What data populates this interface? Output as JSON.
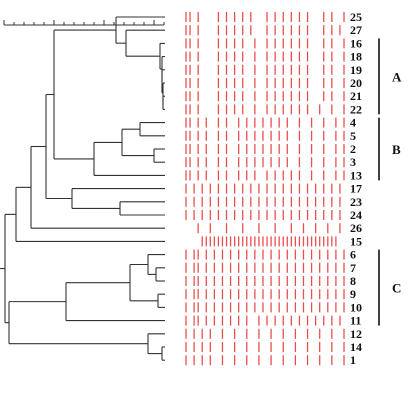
{
  "leaves": [
    {
      "label": "25",
      "bands": [
        0,
        1,
        3,
        8,
        10,
        12,
        14,
        16,
        20,
        22,
        24,
        26,
        28,
        30,
        34,
        36,
        39
      ]
    },
    {
      "label": "27",
      "bands": [
        0,
        1,
        3,
        8,
        10,
        12,
        14,
        16,
        20,
        22,
        24,
        26,
        28,
        30,
        34,
        36,
        38
      ]
    },
    {
      "label": "16",
      "bands": [
        0,
        1,
        3,
        8,
        10,
        12,
        14,
        17,
        20,
        22,
        24,
        26,
        28,
        30,
        34,
        36,
        39
      ]
    },
    {
      "label": "18",
      "bands": [
        0,
        1,
        3,
        8,
        10,
        12,
        14,
        17,
        20,
        22,
        24,
        26,
        28,
        30,
        34,
        36,
        39
      ]
    },
    {
      "label": "19",
      "bands": [
        0,
        1,
        3,
        8,
        10,
        12,
        14,
        17,
        20,
        22,
        24,
        26,
        28,
        30,
        34,
        36,
        39
      ]
    },
    {
      "label": "20",
      "bands": [
        0,
        1,
        3,
        8,
        10,
        12,
        14,
        17,
        20,
        22,
        24,
        26,
        28,
        30,
        34,
        36,
        39
      ]
    },
    {
      "label": "21",
      "bands": [
        0,
        1,
        3,
        8,
        10,
        12,
        14,
        17,
        20,
        22,
        24,
        26,
        28,
        30,
        34,
        36,
        39
      ]
    },
    {
      "label": "22",
      "bands": [
        0,
        1,
        3,
        8,
        10,
        12,
        14,
        17,
        20,
        22,
        24,
        26,
        28,
        30,
        33,
        36,
        39
      ]
    },
    {
      "label": "4",
      "bands": [
        0,
        1,
        3,
        5,
        8,
        10,
        13,
        15,
        17,
        19,
        21,
        23,
        25,
        28,
        31,
        34,
        37,
        39
      ]
    },
    {
      "label": "5",
      "bands": [
        0,
        1,
        3,
        5,
        8,
        10,
        13,
        15,
        17,
        19,
        21,
        23,
        25,
        28,
        31,
        34,
        37,
        39
      ]
    },
    {
      "label": "2",
      "bands": [
        0,
        1,
        3,
        5,
        8,
        10,
        13,
        15,
        17,
        19,
        21,
        23,
        25,
        28,
        31,
        34,
        37,
        39
      ]
    },
    {
      "label": "3",
      "bands": [
        0,
        1,
        3,
        5,
        8,
        10,
        13,
        15,
        17,
        19,
        21,
        23,
        25,
        28,
        31,
        34,
        37,
        39
      ]
    },
    {
      "label": "13",
      "bands": [
        0,
        1,
        3,
        5,
        8,
        10,
        13,
        15,
        17,
        20,
        22,
        24,
        26,
        28,
        31,
        34,
        37,
        39
      ]
    },
    {
      "label": "17",
      "bands": [
        0,
        2,
        4,
        6,
        8,
        10,
        12,
        14,
        16,
        18,
        20,
        22,
        24,
        26,
        28,
        30,
        32,
        34,
        36,
        38
      ]
    },
    {
      "label": "23",
      "bands": [
        0,
        2,
        4,
        6,
        8,
        10,
        12,
        14,
        16,
        18,
        20,
        22,
        24,
        26,
        28,
        30,
        32,
        34,
        36,
        38
      ]
    },
    {
      "label": "24",
      "bands": [
        0,
        2,
        4,
        6,
        8,
        10,
        12,
        14,
        16,
        18,
        20,
        22,
        24,
        26,
        28,
        30,
        32,
        34,
        36,
        38
      ]
    },
    {
      "label": "26",
      "bands": [
        3,
        6,
        10,
        14,
        18,
        22,
        26,
        29,
        32,
        35,
        38
      ]
    },
    {
      "label": "15",
      "bands": [
        4,
        5,
        6,
        7,
        8,
        9,
        10,
        11,
        12,
        13,
        14,
        15,
        16,
        17,
        18,
        19,
        20,
        21,
        22,
        23,
        24,
        25,
        26,
        27,
        28,
        29,
        30,
        31,
        32,
        33,
        34,
        35,
        36,
        37
      ]
    },
    {
      "label": "6",
      "bands": [
        0,
        2,
        3,
        5,
        7,
        9,
        11,
        13,
        15,
        17,
        19,
        21,
        23,
        25,
        27,
        29,
        31,
        33,
        35,
        37,
        39
      ]
    },
    {
      "label": "7",
      "bands": [
        0,
        2,
        3,
        5,
        7,
        9,
        11,
        13,
        15,
        17,
        19,
        21,
        23,
        25,
        27,
        29,
        31,
        33,
        35,
        37,
        39
      ]
    },
    {
      "label": "8",
      "bands": [
        0,
        2,
        3,
        5,
        7,
        9,
        11,
        13,
        15,
        17,
        19,
        21,
        23,
        25,
        27,
        29,
        31,
        33,
        35,
        37,
        39
      ]
    },
    {
      "label": "9",
      "bands": [
        0,
        2,
        3,
        5,
        7,
        9,
        11,
        13,
        15,
        17,
        19,
        21,
        23,
        25,
        27,
        29,
        31,
        33,
        35,
        37,
        39
      ]
    },
    {
      "label": "10",
      "bands": [
        0,
        2,
        3,
        5,
        7,
        9,
        11,
        13,
        15,
        17,
        19,
        21,
        23,
        25,
        27,
        29,
        31,
        33,
        35,
        37,
        39
      ]
    },
    {
      "label": "11",
      "bands": [
        0,
        2,
        3,
        5,
        7,
        9,
        11,
        13,
        15,
        18,
        20,
        22,
        24,
        26,
        28,
        30,
        32,
        34,
        36,
        38
      ]
    },
    {
      "label": "12",
      "bands": [
        0,
        2,
        4,
        6,
        9,
        12,
        15,
        18,
        21,
        24,
        27,
        30,
        33,
        36,
        39
      ]
    },
    {
      "label": "14",
      "bands": [
        0,
        2,
        4,
        6,
        9,
        12,
        15,
        18,
        21,
        24,
        27,
        30,
        33,
        36,
        39
      ]
    },
    {
      "label": "1",
      "bands": [
        0,
        2,
        4,
        6,
        9,
        12,
        15,
        18,
        21,
        24,
        27,
        30,
        33,
        36,
        39
      ]
    }
  ],
  "groups": [
    {
      "label": "A",
      "from": "16",
      "to": "22"
    },
    {
      "label": "B",
      "from": "4",
      "to": "13"
    },
    {
      "label": "C",
      "from": "6",
      "to": "11"
    }
  ],
  "colors": {
    "band": "#e8504f",
    "tree": "#333333",
    "text": "#111111"
  }
}
